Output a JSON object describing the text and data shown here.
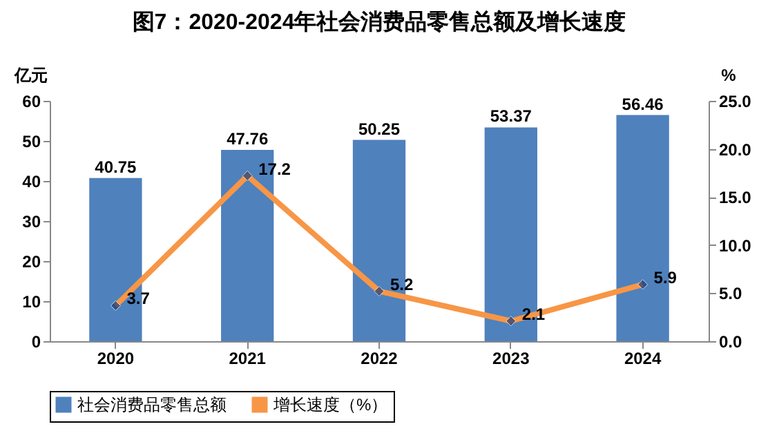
{
  "chart_data": {
    "type": "bar",
    "title": "图7：2020-2024年社会消费品零售总额及增长速度",
    "categories": [
      "2020",
      "2021",
      "2022",
      "2023",
      "2024"
    ],
    "series": [
      {
        "name": "社会消费品零售总额",
        "type": "bar",
        "color": "#4f81bd",
        "values": [
          40.75,
          47.76,
          50.25,
          53.37,
          56.46
        ]
      },
      {
        "name": "增长速度（%）",
        "type": "line",
        "axis": "y2",
        "color": "#f79646",
        "values": [
          3.7,
          17.2,
          5.2,
          2.1,
          5.9
        ]
      }
    ],
    "ylabel": "亿元",
    "y2label": "%",
    "ylim": [
      0,
      60
    ],
    "yticks": [
      0,
      10,
      20,
      30,
      40,
      50,
      60
    ],
    "y2lim": [
      0,
      25
    ],
    "y2ticks": [
      {
        "value": 0,
        "label": "0.0"
      },
      {
        "value": 5,
        "label": "5.0"
      },
      {
        "value": 10,
        "label": "10.0"
      },
      {
        "value": 15,
        "label": "15.0"
      },
      {
        "value": 20,
        "label": "20.0"
      },
      {
        "value": 25,
        "label": "25.0"
      }
    ],
    "data_labels": true,
    "legend": "bottom",
    "marker": "diamond",
    "line_style": "solid",
    "grid": false
  }
}
